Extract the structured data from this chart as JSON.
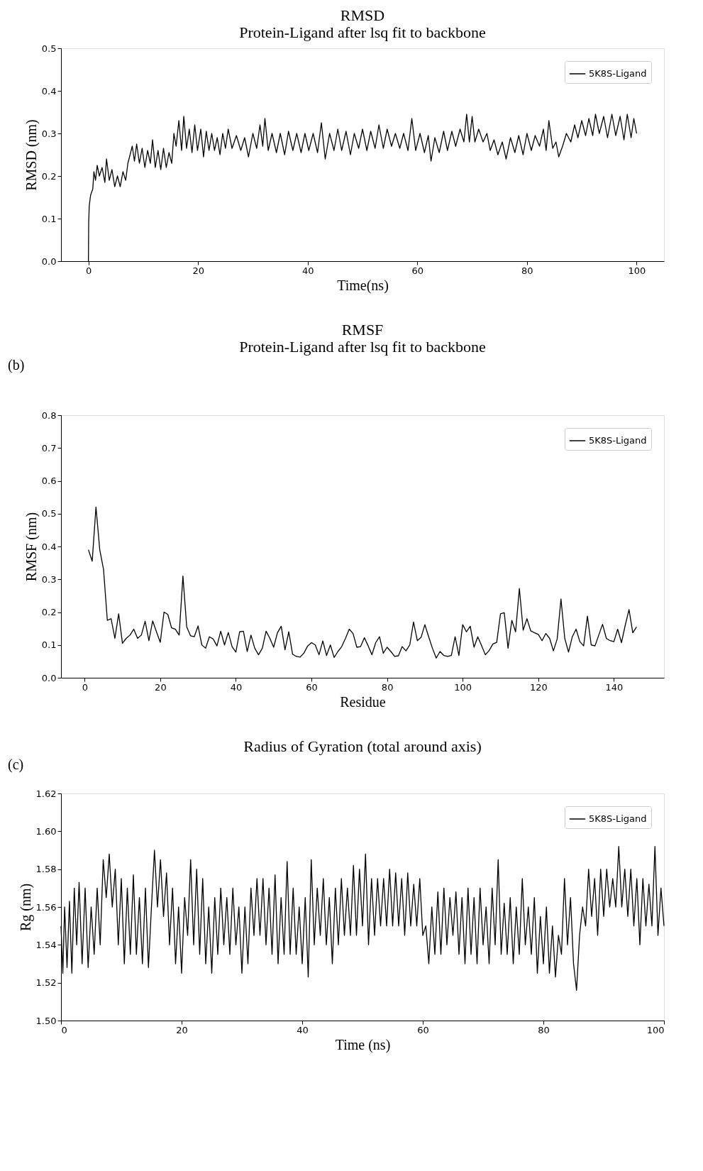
{
  "chart_data": [
    {
      "type": "line",
      "title": "RMSD",
      "subtitle": "Protein-Ligand after lsq fit to backbone",
      "xlabel": "Time(ns)",
      "ylabel": "RMSD (nm)",
      "xlim": [
        -5,
        105
      ],
      "ylim": [
        0,
        0.5
      ],
      "xticks": [
        0,
        20,
        40,
        60,
        80,
        100
      ],
      "yticks": [
        {
          "value": 0,
          "label": "0.0"
        },
        0.1,
        0.2,
        0.3,
        0.4,
        0.5
      ],
      "legend": "top right",
      "grid": false,
      "x": [
        0,
        0.05,
        0.15,
        0.4,
        0.8,
        1.0,
        1.3,
        1.6,
        2.0,
        2.5,
        3,
        3.3,
        3.8,
        4.3,
        4.8,
        5.3,
        5.8,
        6.3,
        6.8,
        7.2,
        7.6,
        8,
        8.4,
        8.8,
        9.3,
        9.8,
        10.3,
        10.8,
        11.3,
        11.7,
        12.2,
        12.7,
        13.2,
        13.7,
        14.2,
        14.7,
        15.2,
        15.6,
        16,
        16.5,
        17,
        17.4,
        17.9,
        18.4,
        18.9,
        19.4,
        19.9,
        20.5,
        21,
        21.5,
        22,
        22.5,
        23,
        23.5,
        24,
        24.5,
        25,
        25.5,
        26.2,
        27,
        27.8,
        28.5,
        29.2,
        30,
        30.7,
        31.3,
        31.8,
        32.2,
        32.8,
        33.5,
        34.3,
        35,
        35.8,
        36.5,
        37.3,
        38,
        38.8,
        39.5,
        40.2,
        41,
        41.8,
        42.5,
        43.2,
        44,
        44.8,
        45.5,
        46.2,
        47,
        47.8,
        48.5,
        49.3,
        50,
        50.8,
        51.5,
        52.3,
        53,
        53.8,
        54.5,
        55.3,
        56,
        56.8,
        57.5,
        58.3,
        59,
        59.7,
        60.5,
        61.3,
        62,
        62.5,
        63.2,
        64,
        64.8,
        65.5,
        66.3,
        67,
        67.8,
        68.5,
        69,
        69.5,
        70,
        70.5,
        71.2,
        72,
        72.7,
        73.3,
        74,
        74.7,
        75.5,
        76.2,
        77,
        77.8,
        78.5,
        79.3,
        80,
        80.8,
        81.5,
        82.3,
        83,
        83.5,
        84,
        84.7,
        85.3,
        85.8,
        86.5,
        87.2,
        88,
        88.7,
        89.3,
        90,
        90.7,
        91.3,
        92,
        92.5,
        93.2,
        94,
        94.7,
        95.5,
        96.2,
        97,
        97.7,
        98.3,
        99,
        99.5,
        100
      ],
      "series": [
        {
          "name": "5K8S-Ligand",
          "color": "#000000",
          "values": [
            0,
            0.09,
            0.13,
            0.155,
            0.17,
            0.21,
            0.19,
            0.225,
            0.2,
            0.22,
            0.185,
            0.24,
            0.19,
            0.215,
            0.175,
            0.2,
            0.175,
            0.21,
            0.19,
            0.23,
            0.25,
            0.27,
            0.235,
            0.275,
            0.23,
            0.265,
            0.22,
            0.26,
            0.23,
            0.285,
            0.22,
            0.26,
            0.215,
            0.265,
            0.22,
            0.255,
            0.23,
            0.3,
            0.27,
            0.33,
            0.26,
            0.34,
            0.265,
            0.31,
            0.255,
            0.32,
            0.26,
            0.31,
            0.245,
            0.305,
            0.26,
            0.3,
            0.26,
            0.29,
            0.25,
            0.3,
            0.265,
            0.31,
            0.265,
            0.295,
            0.26,
            0.29,
            0.245,
            0.3,
            0.265,
            0.32,
            0.27,
            0.335,
            0.26,
            0.3,
            0.255,
            0.3,
            0.25,
            0.305,
            0.26,
            0.3,
            0.255,
            0.3,
            0.26,
            0.3,
            0.255,
            0.325,
            0.24,
            0.3,
            0.26,
            0.31,
            0.26,
            0.305,
            0.25,
            0.3,
            0.265,
            0.31,
            0.26,
            0.305,
            0.265,
            0.32,
            0.265,
            0.31,
            0.27,
            0.3,
            0.265,
            0.3,
            0.26,
            0.335,
            0.26,
            0.3,
            0.255,
            0.295,
            0.235,
            0.29,
            0.255,
            0.305,
            0.26,
            0.305,
            0.27,
            0.31,
            0.28,
            0.345,
            0.28,
            0.34,
            0.28,
            0.31,
            0.28,
            0.3,
            0.26,
            0.285,
            0.25,
            0.28,
            0.24,
            0.29,
            0.255,
            0.295,
            0.25,
            0.3,
            0.26,
            0.295,
            0.27,
            0.31,
            0.26,
            0.33,
            0.265,
            0.28,
            0.245,
            0.27,
            0.3,
            0.28,
            0.32,
            0.29,
            0.33,
            0.295,
            0.335,
            0.295,
            0.345,
            0.3,
            0.34,
            0.29,
            0.345,
            0.295,
            0.34,
            0.285,
            0.345,
            0.29,
            0.335,
            0.3
          ]
        }
      ]
    },
    {
      "type": "line",
      "title": "RMSF",
      "subtitle": "Protein-Ligand after lsq fit to backbone",
      "xlabel": "Residue",
      "ylabel": "RMSF (nm)",
      "xlim": [
        -6.25,
        153.25
      ],
      "ylim": [
        0,
        0.8
      ],
      "xticks": [
        0,
        20,
        40,
        60,
        80,
        100,
        120,
        140
      ],
      "yticks": [
        {
          "value": 0,
          "label": "0.0"
        },
        0.1,
        0.2,
        0.3,
        0.4,
        0.5,
        0.6,
        0.7,
        0.8
      ],
      "legend": "top right",
      "grid": false,
      "annotations": [
        "(b)"
      ],
      "x": [
        1,
        2,
        3,
        4,
        5,
        6,
        7,
        8,
        9,
        10,
        11,
        12,
        13,
        14,
        15,
        16,
        17,
        18,
        19,
        20,
        21,
        22,
        23,
        24,
        25,
        26,
        27,
        28,
        29,
        30,
        31,
        32,
        33,
        34,
        35,
        36,
        37,
        38,
        39,
        40,
        41,
        42,
        43,
        44,
        45,
        46,
        47,
        48,
        49,
        50,
        51,
        52,
        53,
        54,
        55,
        56,
        57,
        58,
        59,
        60,
        61,
        62,
        63,
        64,
        65,
        66,
        67,
        68,
        69,
        70,
        71,
        72,
        73,
        74,
        75,
        76,
        77,
        78,
        79,
        80,
        81,
        82,
        83,
        84,
        85,
        86,
        87,
        88,
        89,
        90,
        91,
        92,
        93,
        94,
        95,
        96,
        97,
        98,
        99,
        100,
        101,
        102,
        103,
        104,
        105,
        106,
        107,
        108,
        109,
        110,
        111,
        112,
        113,
        114,
        115,
        116,
        117,
        118,
        119,
        120,
        121,
        122,
        123,
        124,
        125,
        126,
        127,
        128,
        129,
        130,
        131,
        132,
        133,
        134,
        135,
        136,
        137,
        138,
        139,
        140,
        141,
        142,
        143,
        144,
        145,
        146
      ],
      "series": [
        {
          "name": "5K8S-Ligand",
          "color": "#000000",
          "values": [
            0.39,
            0.355,
            0.52,
            0.39,
            0.33,
            0.175,
            0.18,
            0.12,
            0.195,
            0.105,
            0.12,
            0.13,
            0.148,
            0.12,
            0.13,
            0.172,
            0.113,
            0.173,
            0.14,
            0.108,
            0.2,
            0.193,
            0.152,
            0.148,
            0.13,
            0.31,
            0.155,
            0.128,
            0.125,
            0.158,
            0.1,
            0.09,
            0.125,
            0.118,
            0.097,
            0.142,
            0.1,
            0.138,
            0.095,
            0.078,
            0.14,
            0.142,
            0.08,
            0.13,
            0.09,
            0.07,
            0.09,
            0.142,
            0.12,
            0.093,
            0.137,
            0.157,
            0.085,
            0.14,
            0.072,
            0.065,
            0.063,
            0.075,
            0.097,
            0.107,
            0.1,
            0.07,
            0.112,
            0.068,
            0.1,
            0.062,
            0.08,
            0.095,
            0.12,
            0.148,
            0.135,
            0.093,
            0.095,
            0.122,
            0.097,
            0.07,
            0.107,
            0.125,
            0.075,
            0.093,
            0.08,
            0.065,
            0.067,
            0.095,
            0.082,
            0.1,
            0.17,
            0.113,
            0.123,
            0.162,
            0.125,
            0.09,
            0.06,
            0.08,
            0.068,
            0.065,
            0.068,
            0.125,
            0.068,
            0.162,
            0.14,
            0.157,
            0.093,
            0.125,
            0.098,
            0.07,
            0.083,
            0.103,
            0.108,
            0.195,
            0.198,
            0.09,
            0.175,
            0.14,
            0.272,
            0.145,
            0.18,
            0.143,
            0.137,
            0.132,
            0.113,
            0.135,
            0.12,
            0.082,
            0.118,
            0.24,
            0.12,
            0.078,
            0.125,
            0.148,
            0.11,
            0.097,
            0.188,
            0.1,
            0.097,
            0.13,
            0.163,
            0.12,
            0.113,
            0.11,
            0.148,
            0.107,
            0.16,
            0.208,
            0.137,
            0.155
          ]
        }
      ]
    },
    {
      "type": "line",
      "title": "Radius of Gyration (total around axis)",
      "xlabel": "Time (ns)",
      "ylabel": "Rg (nm)",
      "xlim": [
        0,
        100
      ],
      "ylim": [
        1.5,
        1.62
      ],
      "xticks": [
        0,
        20,
        40,
        60,
        80,
        100
      ],
      "yticks": [
        {
          "value": 1.5,
          "label": "1.50"
        },
        1.52,
        1.54,
        1.56,
        1.58,
        {
          "value": 1.6,
          "label": "1.60"
        },
        1.62
      ],
      "legend": "top right",
      "grid": false,
      "annotations": [
        "(c)"
      ],
      "x": [
        0,
        0.3,
        0.6,
        1,
        1.4,
        1.8,
        2.2,
        2.6,
        3,
        3.5,
        4,
        4.5,
        5,
        5.5,
        6,
        6.5,
        7,
        7.5,
        8,
        8.5,
        9,
        9.5,
        10,
        10.5,
        11,
        11.5,
        12,
        12.5,
        13,
        13.5,
        14,
        14.5,
        15,
        15.5,
        16,
        16.5,
        17,
        17.5,
        18,
        18.5,
        19,
        19.5,
        20,
        20.5,
        21,
        21.5,
        22,
        22.5,
        23,
        23.5,
        24,
        24.5,
        25,
        25.5,
        26,
        26.5,
        27,
        27.5,
        28,
        28.5,
        29,
        29.5,
        30,
        30.5,
        31,
        31.5,
        32,
        32.5,
        33,
        33.5,
        34,
        34.5,
        35,
        35.5,
        36,
        36.5,
        37,
        37.5,
        38,
        38.5,
        39,
        39.5,
        40,
        40.5,
        41,
        41.5,
        42,
        42.5,
        43,
        43.5,
        44,
        44.5,
        45,
        45.5,
        46,
        46.5,
        47,
        47.5,
        48,
        48.5,
        49,
        49.5,
        50,
        50.5,
        51,
        51.5,
        52,
        52.5,
        53,
        53.5,
        54,
        54.5,
        55,
        55.5,
        56,
        56.5,
        57,
        57.5,
        58,
        58.5,
        59,
        59.5,
        60,
        60.5,
        61,
        61.5,
        62,
        62.5,
        63,
        63.5,
        64,
        64.5,
        65,
        65.5,
        66,
        66.5,
        67,
        67.5,
        68,
        68.5,
        69,
        69.5,
        70,
        70.5,
        71,
        71.5,
        72,
        72.5,
        73,
        73.5,
        74,
        74.5,
        75,
        75.5,
        76,
        76.5,
        77,
        77.5,
        78,
        78.5,
        79,
        79.5,
        80,
        80.5,
        81,
        81.5,
        82,
        82.5,
        83,
        83.5,
        84,
        84.5,
        85,
        85.5,
        86,
        86.5,
        87,
        87.5,
        88,
        88.5,
        89,
        89.5,
        90,
        90.5,
        91,
        91.5,
        92,
        92.5,
        93,
        93.5,
        94,
        94.5,
        95,
        95.5,
        96,
        96.5,
        97,
        97.5,
        98,
        98.5,
        99,
        99.5,
        100
      ],
      "series": [
        {
          "name": "5K8S-Ligand",
          "color": "#000000",
          "values": [
            1.55,
            1.525,
            1.56,
            1.528,
            1.563,
            1.525,
            1.57,
            1.54,
            1.573,
            1.53,
            1.57,
            1.528,
            1.56,
            1.535,
            1.57,
            1.54,
            1.585,
            1.565,
            1.588,
            1.56,
            1.58,
            1.54,
            1.575,
            1.53,
            1.57,
            1.535,
            1.577,
            1.535,
            1.565,
            1.53,
            1.57,
            1.528,
            1.56,
            1.59,
            1.56,
            1.585,
            1.555,
            1.578,
            1.54,
            1.57,
            1.53,
            1.56,
            1.525,
            1.565,
            1.545,
            1.585,
            1.54,
            1.58,
            1.535,
            1.575,
            1.53,
            1.56,
            1.525,
            1.565,
            1.535,
            1.57,
            1.54,
            1.565,
            1.535,
            1.57,
            1.54,
            1.56,
            1.525,
            1.56,
            1.53,
            1.57,
            1.545,
            1.575,
            1.545,
            1.575,
            1.54,
            1.57,
            1.535,
            1.577,
            1.53,
            1.565,
            1.535,
            1.584,
            1.535,
            1.57,
            1.535,
            1.56,
            1.53,
            1.565,
            1.523,
            1.585,
            1.54,
            1.57,
            1.545,
            1.575,
            1.54,
            1.565,
            1.53,
            1.57,
            1.54,
            1.575,
            1.545,
            1.57,
            1.545,
            1.582,
            1.545,
            1.58,
            1.55,
            1.588,
            1.54,
            1.575,
            1.545,
            1.575,
            1.55,
            1.575,
            1.55,
            1.58,
            1.55,
            1.578,
            1.55,
            1.575,
            1.545,
            1.578,
            1.55,
            1.572,
            1.55,
            1.575,
            1.545,
            1.55,
            1.53,
            1.56,
            1.535,
            1.568,
            1.535,
            1.57,
            1.54,
            1.565,
            1.545,
            1.568,
            1.535,
            1.565,
            1.53,
            1.57,
            1.535,
            1.565,
            1.53,
            1.57,
            1.54,
            1.56,
            1.53,
            1.57,
            1.54,
            1.585,
            1.535,
            1.562,
            1.535,
            1.565,
            1.53,
            1.56,
            1.535,
            1.575,
            1.54,
            1.56,
            1.535,
            1.565,
            1.525,
            1.555,
            1.53,
            1.56,
            1.525,
            1.55,
            1.523,
            1.545,
            1.535,
            1.575,
            1.54,
            1.565,
            1.53,
            1.516,
            1.545,
            1.56,
            1.55,
            1.58,
            1.555,
            1.575,
            1.545,
            1.58,
            1.555,
            1.58,
            1.56,
            1.575,
            1.56,
            1.592,
            1.56,
            1.58,
            1.555,
            1.58,
            1.55,
            1.575,
            1.54,
            1.575,
            1.55,
            1.572,
            1.55,
            1.592,
            1.545,
            1.57,
            1.55
          ]
        }
      ]
    }
  ]
}
